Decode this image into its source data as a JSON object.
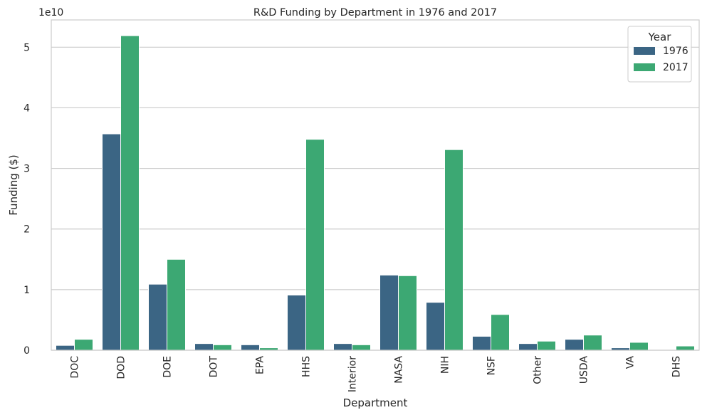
{
  "chart_data": {
    "type": "bar",
    "title": "R&D Funding by Department in 1976 and 2017",
    "xlabel": "Department",
    "ylabel": "Funding ($)",
    "y_offset_label": "1e10",
    "y_scale": 10000000000,
    "ylim": [
      0,
      54500000000
    ],
    "yticks": [
      0,
      10000000000,
      20000000000,
      30000000000,
      40000000000,
      50000000000
    ],
    "ytick_labels": [
      "0",
      "1",
      "2",
      "3",
      "4",
      "5"
    ],
    "grid": true,
    "legend_title": "Year",
    "legend_position": "top-right",
    "categories": [
      "DOC",
      "DOD",
      "DOE",
      "DOT",
      "EPA",
      "HHS",
      "Interior",
      "NASA",
      "NIH",
      "NSF",
      "Other",
      "USDA",
      "VA",
      "DHS"
    ],
    "series": [
      {
        "name": "1976",
        "color": "#3b6584",
        "values": [
          800000000,
          35700000000,
          10900000000,
          1100000000,
          900000000,
          9100000000,
          1100000000,
          12400000000,
          7900000000,
          2300000000,
          1100000000,
          1800000000,
          400000000,
          0
        ]
      },
      {
        "name": "2017",
        "color": "#3ca873",
        "values": [
          1800000000,
          51900000000,
          15000000000,
          900000000,
          400000000,
          34800000000,
          900000000,
          12300000000,
          33100000000,
          5900000000,
          1500000000,
          2500000000,
          1300000000,
          700000000
        ]
      }
    ]
  }
}
